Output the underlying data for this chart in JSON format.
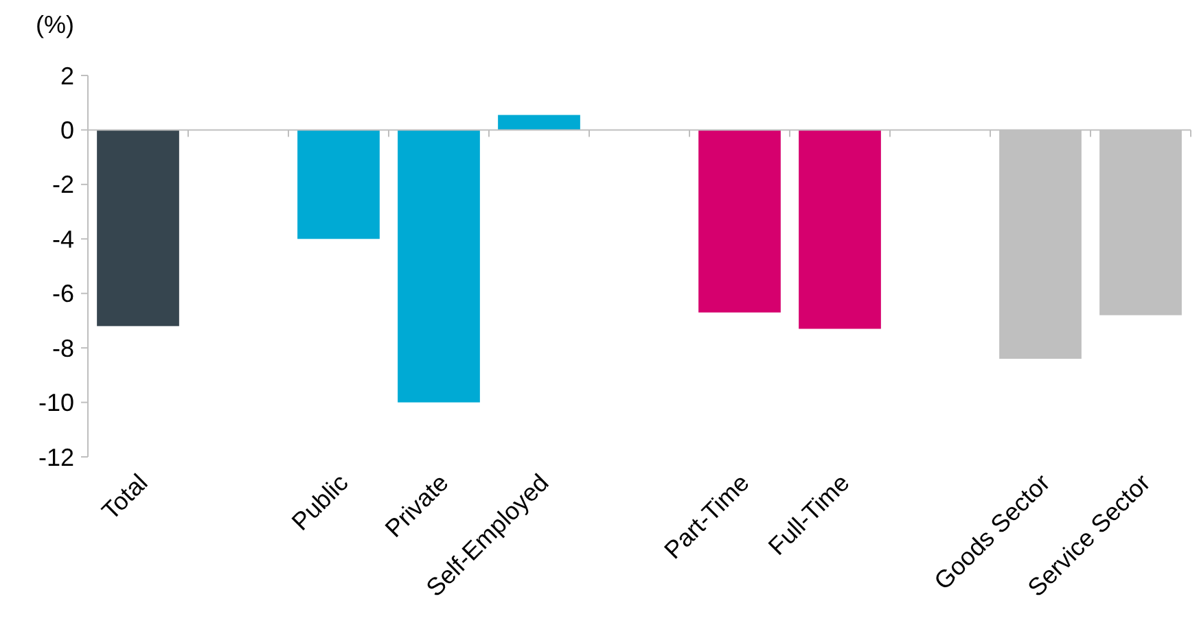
{
  "chart_data": {
    "type": "bar",
    "ylabel": "(%)",
    "categories": [
      "Total",
      null,
      "Public",
      "Private",
      "Self-Employed",
      null,
      "Part-Time",
      "Full-Time",
      null,
      "Goods Sector",
      "Service Sector"
    ],
    "values": [
      -7.2,
      null,
      -4.0,
      -10.0,
      0.55,
      null,
      -6.7,
      -7.3,
      null,
      -8.4,
      -6.8
    ],
    "colors": [
      "#36454f",
      null,
      "#00aad4",
      "#00aad4",
      "#00aad4",
      null,
      "#d6006e",
      "#d6006e",
      null,
      "#bfbfbf",
      "#bfbfbf"
    ],
    "ylim": [
      -12,
      2
    ],
    "yticks": [
      -12,
      -10,
      -8,
      -6,
      -4,
      -2,
      0,
      2
    ]
  }
}
